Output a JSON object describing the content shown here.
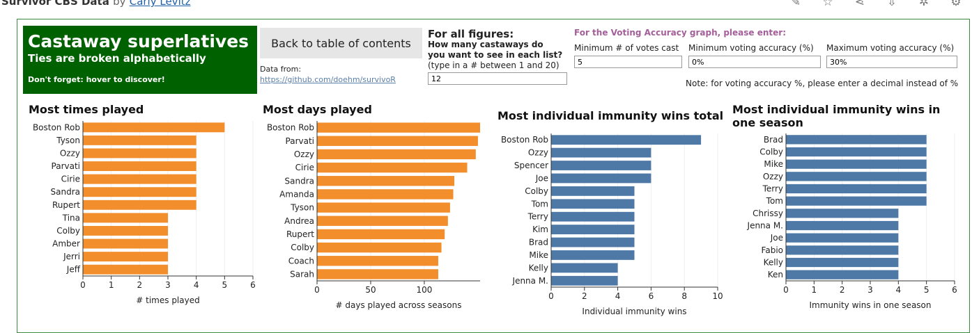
{
  "page": {
    "title": "Survivor CBS Data",
    "by": "by",
    "author": "Carly Levitz",
    "icons": [
      "edit-icon",
      "star-icon",
      "share-icon",
      "download-icon",
      "settings-cog-icon",
      "gear-icon"
    ]
  },
  "hero": {
    "title": "Castaway superlatives",
    "subtitle": "Ties are broken alphabetically",
    "note": "Don't forget: hover to discover!"
  },
  "nav": {
    "back_label": "Back to table of contents",
    "data_from": "Data from:",
    "data_link": "https://github.com/doehm/survivoR"
  },
  "figures": {
    "heading": "For all figures:",
    "question_line1": "How many castaways do",
    "question_line2": "you want to see in each list?",
    "question_hint": "(type in a # between 1 and 20)",
    "count_value": "12"
  },
  "voting": {
    "heading": "For the Voting Accuracy graph, please enter:",
    "min_votes_label": "Minimum # of votes cast",
    "min_votes_value": "5",
    "min_acc_label": "Minimum voting accuracy (%)",
    "min_acc_value": "0%",
    "max_acc_label": "Maximum voting accuracy (%)",
    "max_acc_value": "30%",
    "note": "Note: for voting accuracy %, please enter a decimal instead of %"
  },
  "colors": {
    "orange": "#f28e2b",
    "blue": "#4e79a7",
    "hero_bg": "#006100"
  },
  "chart_data": [
    {
      "type": "bar",
      "title": "Most times played",
      "categories": [
        "Boston Rob",
        "Tyson",
        "Ozzy",
        "Parvati",
        "Cirie",
        "Sandra",
        "Rupert",
        "Tina",
        "Colby",
        "Amber",
        "Jerri",
        "Jeff"
      ],
      "values": [
        5,
        4,
        4,
        4,
        4,
        4,
        4,
        3,
        3,
        3,
        3,
        3
      ],
      "xlabel": "# times played",
      "xlim": [
        0,
        6
      ],
      "ticks": [
        0,
        1,
        2,
        3,
        4,
        5,
        6
      ],
      "color": "#f28e2b"
    },
    {
      "type": "bar",
      "title": "Most days played",
      "categories": [
        "Boston Rob",
        "Parvati",
        "Ozzy",
        "Cirie",
        "Sandra",
        "Amanda",
        "Tyson",
        "Andrea",
        "Rupert",
        "Colby",
        "Coach",
        "Sarah"
      ],
      "values": [
        152,
        150,
        148,
        140,
        128,
        127,
        124,
        122,
        119,
        116,
        113,
        113
      ],
      "xlabel": "# days played across seasons",
      "xlim": [
        0,
        152
      ],
      "ticks": [
        0,
        50,
        100
      ],
      "color": "#f28e2b"
    },
    {
      "type": "bar",
      "title": "Most individual immunity wins total",
      "categories": [
        "Boston Rob",
        "Ozzy",
        "Spencer",
        "Joe",
        "Colby",
        "Tom",
        "Terry",
        "Kim",
        "Brad",
        "Mike",
        "Kelly",
        "Jenna M."
      ],
      "values": [
        9,
        6,
        6,
        6,
        5,
        5,
        5,
        5,
        5,
        5,
        4,
        4
      ],
      "xlabel": "Individual immunity wins",
      "xlim": [
        0,
        10
      ],
      "ticks": [
        0,
        2,
        4,
        6,
        8,
        10
      ],
      "color": "#4e79a7"
    },
    {
      "type": "bar",
      "title": "Most individual immunity wins in one season",
      "categories": [
        "Brad",
        "Colby",
        "Mike",
        "Ozzy",
        "Terry",
        "Tom",
        "Chrissy",
        "Jenna M.",
        "Joe",
        "Fabio",
        "Kelly",
        "Ken"
      ],
      "values": [
        5,
        5,
        5,
        5,
        5,
        5,
        4,
        4,
        4,
        4,
        4,
        4
      ],
      "xlabel": "Immunity wins in one season",
      "xlim": [
        0,
        6
      ],
      "ticks": [
        0,
        1,
        2,
        3,
        4,
        5,
        6
      ],
      "color": "#4e79a7"
    }
  ]
}
